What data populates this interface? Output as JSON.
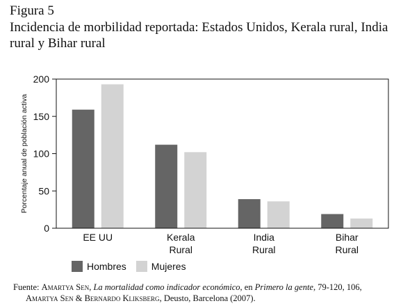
{
  "figure_label": "Figura 5",
  "chart_data": {
    "type": "bar",
    "title": "Incidencia de morbilidad reportada: Estados Unidos, Kerala rural, India rural y Bihar rural",
    "xlabel": "",
    "ylabel": "Porcentaje anual de población activa",
    "categories": [
      [
        "EE UU"
      ],
      [
        "Kerala",
        "Rural"
      ],
      [
        "India",
        "Rural"
      ],
      [
        "Bihar",
        "Rural"
      ]
    ],
    "series": [
      {
        "name": "Hombres",
        "color": "#656565",
        "values": [
          159,
          112,
          39,
          19
        ]
      },
      {
        "name": "Mujeres",
        "color": "#d3d3d3",
        "values": [
          193,
          102,
          36,
          13
        ]
      }
    ],
    "ylim": [
      0,
      200
    ],
    "yticks": [
      0,
      50,
      100,
      150,
      200
    ],
    "grid": false,
    "legend_position": "bottom-left"
  },
  "source": {
    "prefix": "Fuente: ",
    "author1": "Amartya Sen",
    "sep1": ", ",
    "work": "La mortalidad como indicador económico",
    "mid": ", en ",
    "book": "Primero la gente",
    "pages": ", 79-120, 106,",
    "author2a": "Amartya Sen",
    "amp": " & ",
    "author2b": "Bernardo Kliksberg",
    "tail": ", Deusto, Barcelona (2007)."
  }
}
